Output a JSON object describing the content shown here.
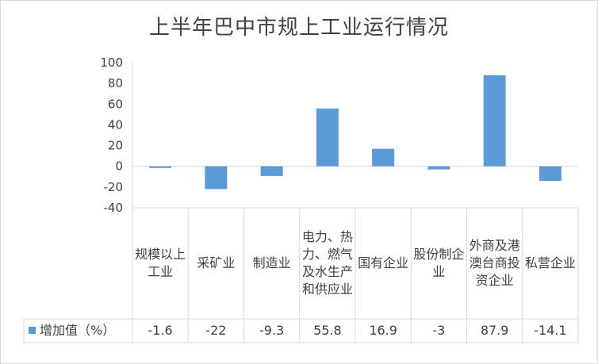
{
  "chart_data": {
    "type": "bar",
    "title": "上半年巴中市规上工业运行情况",
    "categories": [
      "规模以上工业",
      "采矿业",
      "制造业",
      "电力、热力、燃气及水生产和供应业",
      "国有企业",
      "股份制企业",
      "外商及港澳台商投资企业",
      "私营企业"
    ],
    "series": [
      {
        "name": "增加值（%）",
        "values": [
          -1.6,
          -22,
          -9.3,
          55.8,
          16.9,
          -3,
          87.9,
          -14.1
        ],
        "color": "#5b9bd5"
      }
    ],
    "value_labels": [
      "-1.6",
      "-22",
      "-9.3",
      "55.8",
      "16.9",
      "-3",
      "87.9",
      "-14.1"
    ],
    "ylim": [
      -40,
      100
    ],
    "yticks": [
      -40,
      -20,
      0,
      20,
      40,
      60,
      80,
      100
    ],
    "xlabel": "",
    "ylabel": "",
    "grid": false,
    "legend": "bottom-left, in data table",
    "data_table": true
  }
}
